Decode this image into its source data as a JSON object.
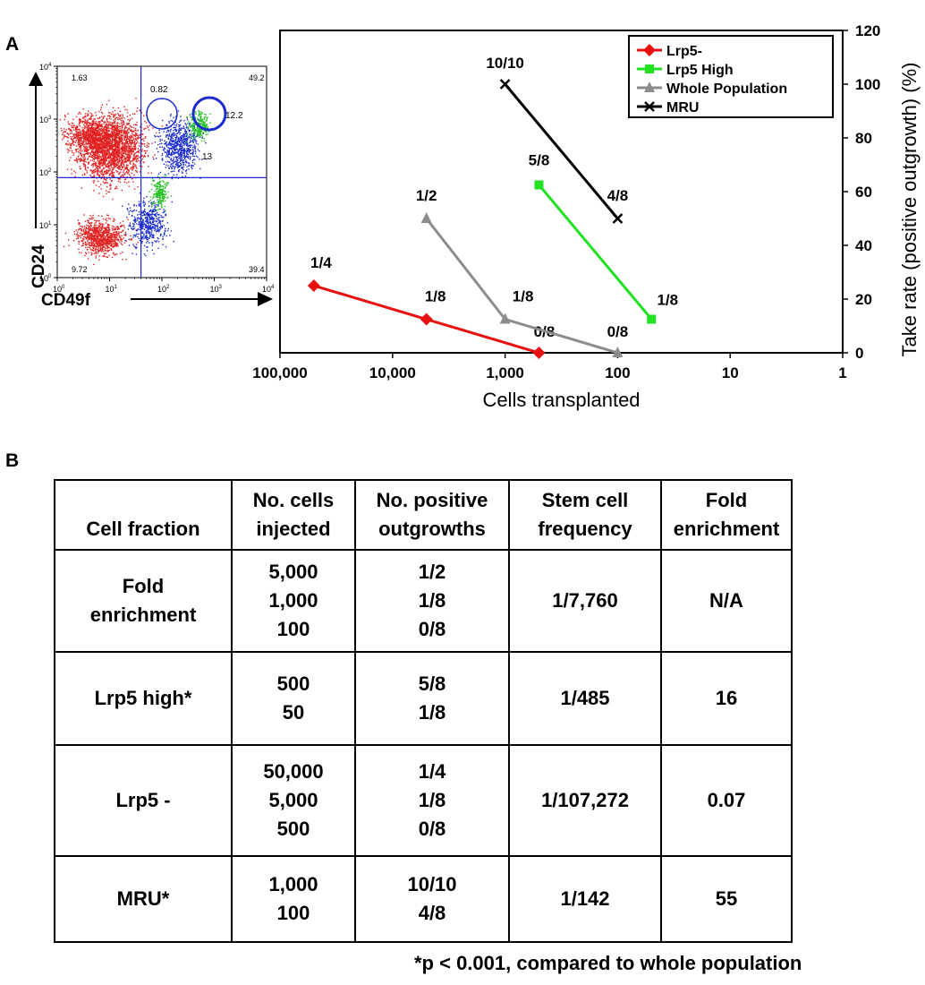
{
  "panel_a_label": "A",
  "panel_b_label": "B",
  "flow": {
    "y_axis_label": "CD24",
    "x_axis_label": "CD49f",
    "y_ticks": [
      "10^0",
      "10^1",
      "10^2",
      "10^3",
      "10^4"
    ],
    "x_ticks": [
      "10^0",
      "10^1",
      "10^2",
      "10^3",
      "10^4"
    ],
    "quadrant_values": {
      "top_left": "1.63",
      "top_right": "49.2",
      "bottom_left": "9.72",
      "bottom_right": "39.4"
    },
    "gate_values": [
      "0.82",
      "12.2",
      "13"
    ],
    "colors": {
      "red": "#e02020",
      "blue": "#1a2bd0",
      "green": "#22c022",
      "gate": "#1a2bd0"
    }
  },
  "chart_data": {
    "type": "line",
    "xlabel": "Cells transplanted",
    "ylabel": "Take rate (positive outgrowth) (%)",
    "x_scale": "log",
    "x_reversed": true,
    "x_ticks": [
      100000,
      10000,
      1000,
      100,
      10,
      1
    ],
    "x_tick_labels": [
      "100,000",
      "10,000",
      "1,000",
      "100",
      "10",
      "1"
    ],
    "xlim": [
      100000,
      1
    ],
    "ylim": [
      0,
      120
    ],
    "y_ticks": [
      0,
      20,
      40,
      60,
      80,
      100,
      120
    ],
    "y_axis_position": "right",
    "legend_position": "top-right",
    "series": [
      {
        "name": "Lrp5-",
        "color": "#e81010",
        "marker": "diamond",
        "points": [
          {
            "x": 50000,
            "y": 25,
            "label": "1/4"
          },
          {
            "x": 5000,
            "y": 12.5,
            "label": "1/8"
          },
          {
            "x": 500,
            "y": 0,
            "label": "0/8"
          }
        ]
      },
      {
        "name": "Lrp5 High",
        "color": "#22e022",
        "marker": "square",
        "points": [
          {
            "x": 500,
            "y": 62.5,
            "label": "5/8"
          },
          {
            "x": 50,
            "y": 12.5,
            "label": "1/8"
          }
        ]
      },
      {
        "name": "Whole Population",
        "color": "#8c8c8c",
        "marker": "triangle",
        "points": [
          {
            "x": 5000,
            "y": 50,
            "label": "1/2"
          },
          {
            "x": 1000,
            "y": 12.5,
            "label": "1/8"
          },
          {
            "x": 100,
            "y": 0,
            "label": "0/8"
          }
        ]
      },
      {
        "name": "MRU",
        "color": "#000000",
        "marker": "x",
        "points": [
          {
            "x": 1000,
            "y": 100,
            "label": "10/10"
          },
          {
            "x": 100,
            "y": 50,
            "label": "4/8"
          }
        ]
      }
    ]
  },
  "table": {
    "headers": [
      [
        "Cell fraction"
      ],
      [
        "No. cells",
        "injected"
      ],
      [
        "No. positive",
        "outgrowths"
      ],
      [
        "Stem cell",
        "frequency"
      ],
      [
        "Fold",
        "enrichment"
      ]
    ],
    "rows": [
      {
        "fraction": [
          "Fold",
          "enrichment"
        ],
        "cells": [
          "5,000",
          "1,000",
          "100"
        ],
        "outgrowths": [
          "1/2",
          "1/8",
          "0/8"
        ],
        "frequency": "1/7,760",
        "enrichment": "N/A"
      },
      {
        "fraction": [
          "Lrp5 high*"
        ],
        "cells": [
          "500",
          "50"
        ],
        "outgrowths": [
          "5/8",
          "1/8"
        ],
        "frequency": "1/485",
        "enrichment": "16"
      },
      {
        "fraction": [
          "Lrp5 -"
        ],
        "cells": [
          "50,000",
          "5,000",
          "500"
        ],
        "outgrowths": [
          "1/4",
          "1/8",
          "0/8"
        ],
        "frequency": "1/107,272",
        "enrichment": "0.07"
      },
      {
        "fraction": [
          "MRU*"
        ],
        "cells": [
          "1,000",
          "100"
        ],
        "outgrowths": [
          "10/10",
          "4/8"
        ],
        "frequency": "1/142",
        "enrichment": "55"
      }
    ],
    "footnote": "*p < 0.001, compared to whole population"
  }
}
